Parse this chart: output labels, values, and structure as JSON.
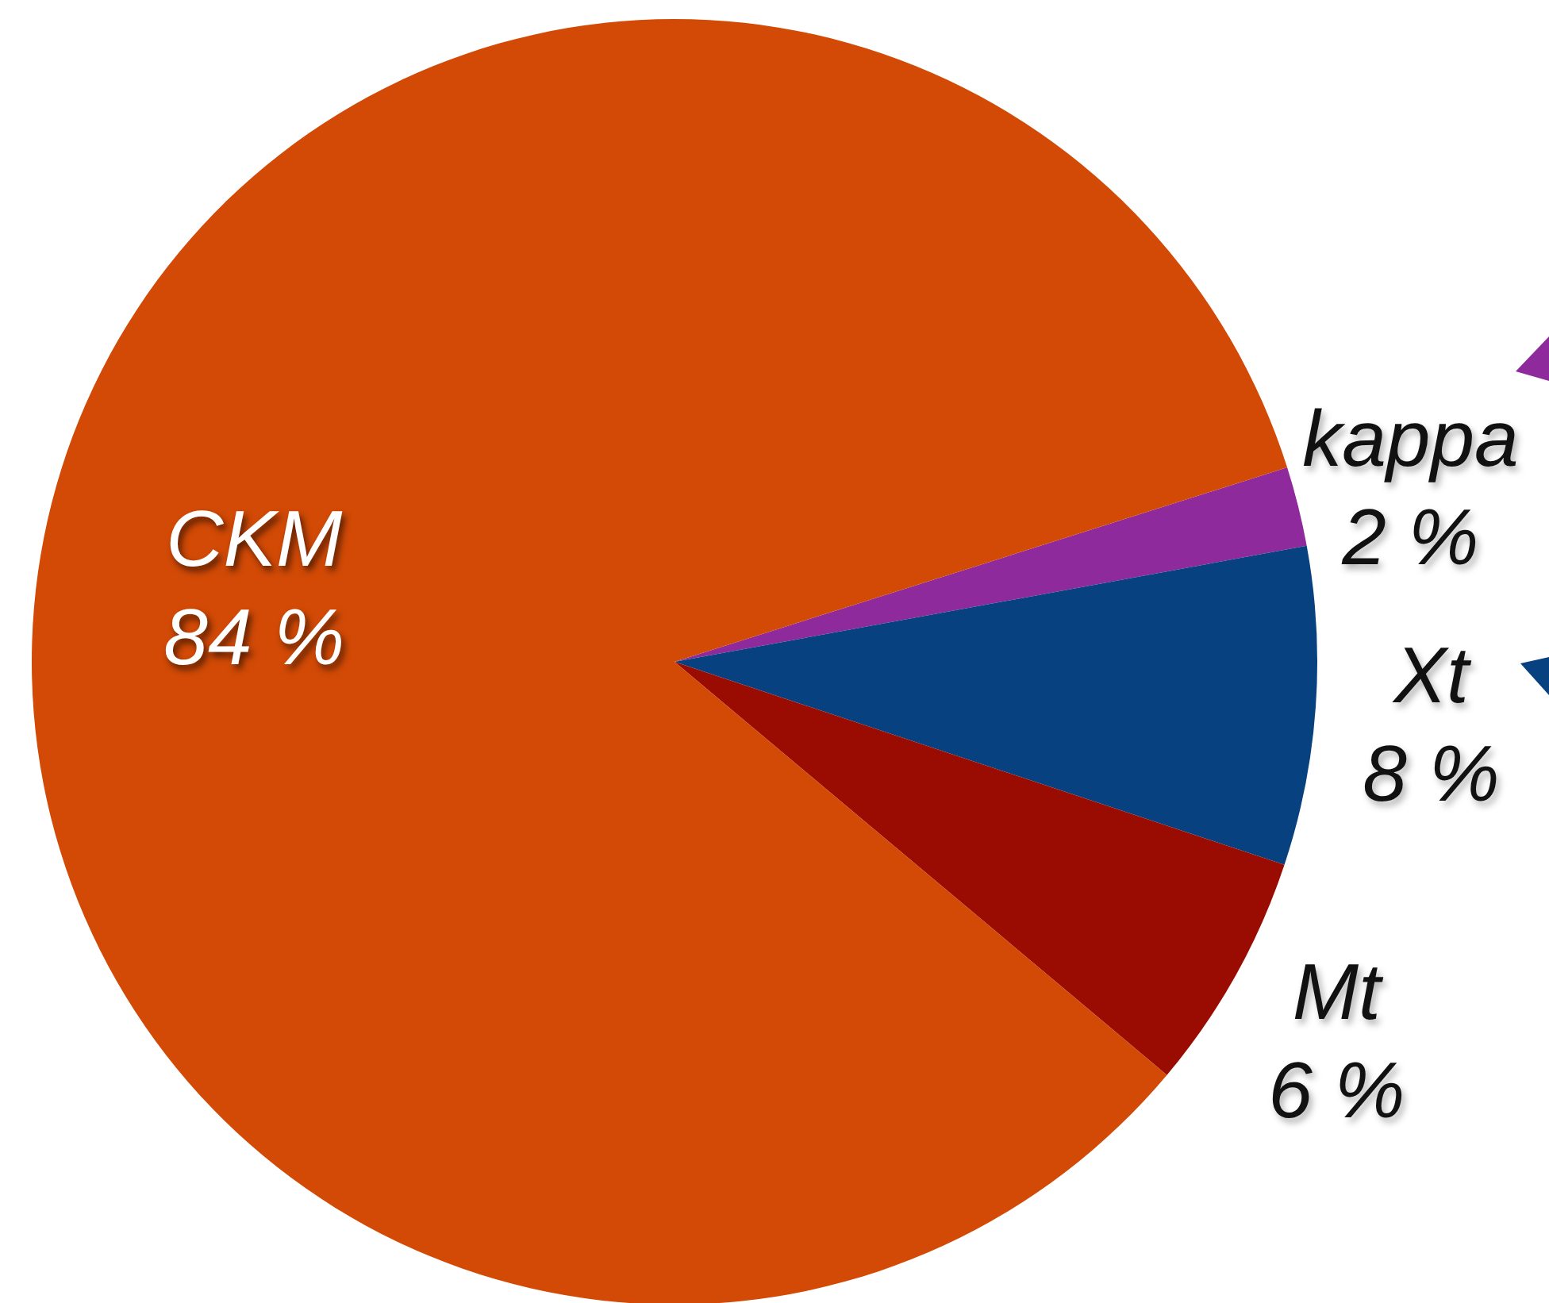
{
  "chart_data": {
    "type": "pie",
    "categories": [
      "kappa",
      "Xt",
      "Mt",
      "CKM"
    ],
    "values": [
      2,
      8,
      6,
      84
    ],
    "colors": [
      "#8e2a9c",
      "#07417f",
      "#9a0b02",
      "#d24a06"
    ],
    "value_labels": [
      "2 %",
      "8 %",
      "6 %",
      "84 %"
    ]
  }
}
